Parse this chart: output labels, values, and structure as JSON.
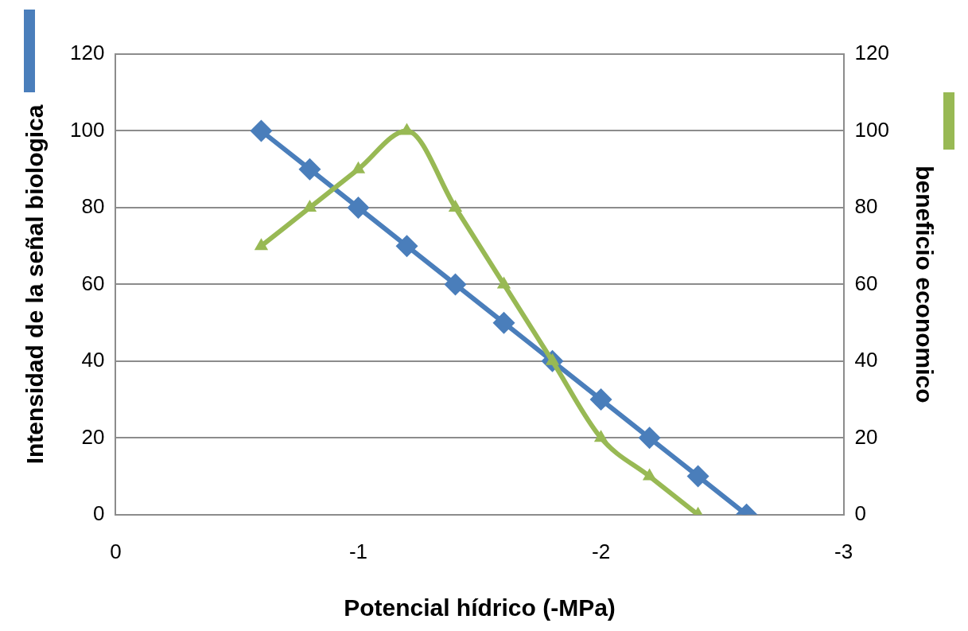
{
  "chart_data": {
    "type": "line",
    "xlabel": "Potencial hídrico (-MPa)",
    "ylabel": "Intensidad de la señal biologica",
    "y2label": "beneficio economico",
    "xlim": [
      0,
      -3
    ],
    "xticks": [
      0,
      -1,
      -2,
      -3
    ],
    "ylim": [
      0,
      120
    ],
    "yticks": [
      0,
      20,
      40,
      60,
      80,
      100,
      120
    ],
    "y2lim": [
      0,
      120
    ],
    "y2ticks": [
      0,
      20,
      40,
      60,
      80,
      100,
      120
    ],
    "grid": "y",
    "legend": false,
    "series": [
      {
        "color": "#4a7ebb",
        "marker": "diamond",
        "x": [
          -0.6,
          -0.8,
          -1.0,
          -1.2,
          -1.4,
          -1.6,
          -1.8,
          -2.0,
          -2.2,
          -2.4,
          -2.6
        ],
        "values": [
          100,
          90,
          80,
          70,
          60,
          50,
          40,
          30,
          20,
          10,
          0
        ]
      },
      {
        "color": "#98b954",
        "marker": "triangle",
        "axis": "y2",
        "x": [
          -0.6,
          -0.8,
          -1.0,
          -1.2,
          -1.4,
          -1.6,
          -1.8,
          -2.0,
          -2.2,
          -2.4
        ],
        "values": [
          70,
          80,
          90,
          100,
          80,
          60,
          40,
          20,
          10,
          0
        ]
      }
    ]
  }
}
